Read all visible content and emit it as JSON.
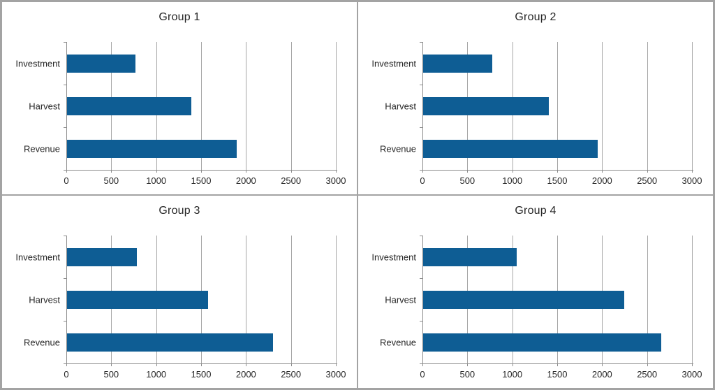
{
  "style": {
    "bar_color": "#0e5d94",
    "gridline_color": "#a6a6a6",
    "axis_color": "#8c8c8c",
    "label_color": "#262626",
    "title_color": "#262626",
    "border_color": "#a3a3a3",
    "background": "#ffffff"
  },
  "chart_data": [
    {
      "type": "bar",
      "orientation": "horizontal",
      "title": "Group 1",
      "categories": [
        "Investment",
        "Harvest",
        "Revenue"
      ],
      "values": [
        760,
        1380,
        1890
      ],
      "xlim": [
        0,
        3000
      ],
      "xticks": [
        0,
        500,
        1000,
        1500,
        2000,
        2500,
        3000
      ],
      "grid": true,
      "legend": false
    },
    {
      "type": "bar",
      "orientation": "horizontal",
      "title": "Group 2",
      "categories": [
        "Investment",
        "Harvest",
        "Revenue"
      ],
      "values": [
        770,
        1400,
        1940
      ],
      "xlim": [
        0,
        3000
      ],
      "xticks": [
        0,
        500,
        1000,
        1500,
        2000,
        2500,
        3000
      ],
      "grid": true,
      "legend": false
    },
    {
      "type": "bar",
      "orientation": "horizontal",
      "title": "Group 3",
      "categories": [
        "Investment",
        "Harvest",
        "Revenue"
      ],
      "values": [
        780,
        1570,
        2290
      ],
      "xlim": [
        0,
        3000
      ],
      "xticks": [
        0,
        500,
        1000,
        1500,
        2000,
        2500,
        3000
      ],
      "grid": true,
      "legend": false
    },
    {
      "type": "bar",
      "orientation": "horizontal",
      "title": "Group 4",
      "categories": [
        "Investment",
        "Harvest",
        "Revenue"
      ],
      "values": [
        1040,
        2240,
        2650
      ],
      "xlim": [
        0,
        3000
      ],
      "xticks": [
        0,
        500,
        1000,
        1500,
        2000,
        2500,
        3000
      ],
      "grid": true,
      "legend": false
    }
  ]
}
